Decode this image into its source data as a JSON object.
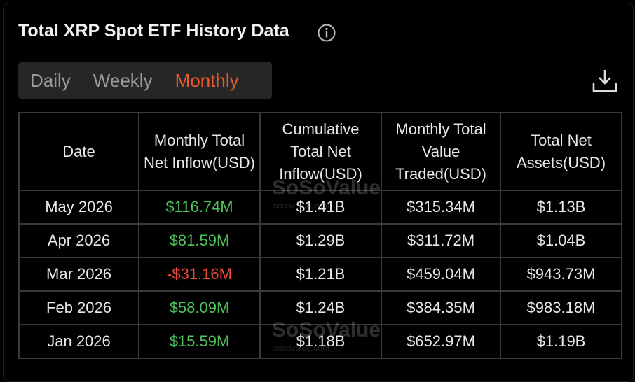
{
  "header": {
    "title": "Total XRP Spot ETF History Data"
  },
  "tabs": [
    "Daily",
    "Weekly",
    "Monthly"
  ],
  "active_tab": 2,
  "table": {
    "columns": [
      "Date",
      "Monthly Total Net Inflow(USD)",
      "Cumulative Total Net Inflow(USD)",
      "Monthly Total Value Traded(USD)",
      "Total Net Assets(USD)"
    ],
    "rows": [
      [
        "May 2026",
        "$116.74M",
        "$1.41B",
        "$315.34M",
        "$1.13B"
      ],
      [
        "Apr 2026",
        "$81.59M",
        "$1.29B",
        "$311.72M",
        "$1.04B"
      ],
      [
        "Mar 2026",
        "-$31.16M",
        "$1.21B",
        "$459.04M",
        "$943.73M"
      ],
      [
        "Feb 2026",
        "$58.09M",
        "$1.24B",
        "$384.35M",
        "$983.18M"
      ],
      [
        "Jan 2026",
        "$15.59M",
        "$1.18B",
        "$652.97M",
        "$1.19B"
      ]
    ]
  },
  "watermark": {
    "brand": "SoSoValue",
    "url": "sosovalue.com"
  }
}
